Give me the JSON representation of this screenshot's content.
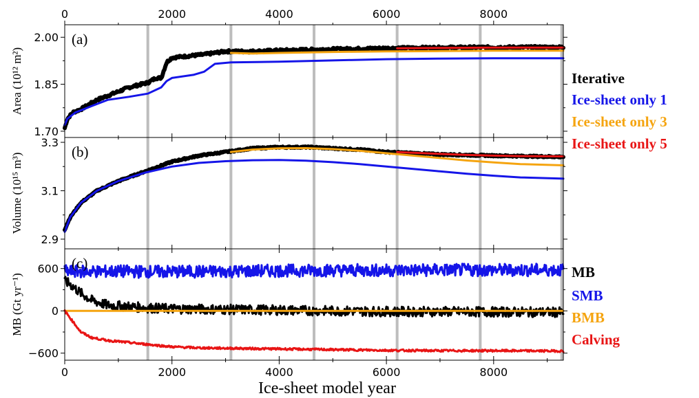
{
  "chart_data": [
    {
      "type": "line",
      "panel_label": "(a)",
      "ylabel": "Area (10¹² m²)",
      "xlim": [
        0,
        9300
      ],
      "ylim": [
        1.68,
        2.04
      ],
      "yticks": [
        1.7,
        1.85,
        2.0
      ],
      "ytick_labels": [
        "1.70",
        "1.85",
        "2.00"
      ],
      "xticks_top": [
        0,
        2000,
        4000,
        6000,
        8000
      ],
      "series": [
        {
          "name": "Iterative",
          "color": "#000000",
          "noisy": true,
          "x": [
            0,
            50,
            150,
            300,
            600,
            900,
            1200,
            1550,
            1700,
            1800,
            1900,
            2000,
            2300,
            2600,
            2800,
            3000,
            3100,
            3500,
            4000,
            5000,
            6000,
            7000,
            8000,
            9300
          ],
          "y": [
            1.71,
            1.74,
            1.76,
            1.77,
            1.8,
            1.82,
            1.84,
            1.855,
            1.87,
            1.87,
            1.92,
            1.935,
            1.94,
            1.945,
            1.95,
            1.955,
            1.955,
            1.955,
            1.958,
            1.962,
            1.965,
            1.967,
            1.968,
            1.968
          ]
        },
        {
          "name": "Ice-sheet only 1",
          "color": "#1515e8",
          "x": [
            0,
            50,
            200,
            500,
            800,
            1200,
            1550,
            1800,
            1900,
            2000,
            2400,
            2600,
            2800,
            3100,
            4000,
            5000,
            6000,
            7000,
            8000,
            9300
          ],
          "y": [
            1.72,
            1.74,
            1.76,
            1.78,
            1.8,
            1.81,
            1.82,
            1.84,
            1.86,
            1.87,
            1.88,
            1.89,
            1.915,
            1.92,
            1.922,
            1.926,
            1.93,
            1.932,
            1.933,
            1.933
          ]
        },
        {
          "name": "Ice-sheet only 3",
          "color": "#f5a40f",
          "x": [
            3100,
            3500,
            4000,
            5000,
            6000,
            7000,
            8000,
            9300
          ],
          "y": [
            1.95,
            1.948,
            1.95,
            1.953,
            1.955,
            1.956,
            1.957,
            1.957
          ]
        },
        {
          "name": "Ice-sheet only 5",
          "color": "#e81515",
          "x": [
            6200,
            7000,
            8000,
            9300
          ],
          "y": [
            1.965,
            1.966,
            1.967,
            1.967
          ]
        }
      ]
    },
    {
      "type": "line",
      "panel_label": "(b)",
      "ylabel": "Volume (10¹⁵ m³)",
      "xlim": [
        0,
        9300
      ],
      "ylim": [
        2.86,
        3.32
      ],
      "yticks": [
        2.9,
        3.1,
        3.3
      ],
      "ytick_labels": [
        "2.9",
        "3.1",
        "3.3"
      ],
      "series": [
        {
          "name": "Iterative",
          "color": "#000000",
          "noisy": true,
          "x": [
            0,
            100,
            300,
            600,
            1000,
            1500,
            2000,
            2500,
            3000,
            3500,
            4000,
            4600,
            5000,
            5500,
            6000,
            6500,
            7000,
            8000,
            9300
          ],
          "y": [
            2.94,
            2.99,
            3.05,
            3.1,
            3.14,
            3.18,
            3.22,
            3.245,
            3.26,
            3.275,
            3.28,
            3.28,
            3.275,
            3.27,
            3.26,
            3.255,
            3.25,
            3.245,
            3.24
          ]
        },
        {
          "name": "Ice-sheet only 1",
          "color": "#1515e8",
          "x": [
            0,
            100,
            300,
            600,
            1000,
            1500,
            2000,
            2500,
            3000,
            3500,
            4000,
            4500,
            5000,
            5500,
            6000,
            6500,
            7000,
            7500,
            8000,
            8500,
            9300
          ],
          "y": [
            2.93,
            2.99,
            3.05,
            3.1,
            3.14,
            3.175,
            3.2,
            3.215,
            3.222,
            3.226,
            3.227,
            3.224,
            3.218,
            3.21,
            3.2,
            3.19,
            3.18,
            3.17,
            3.162,
            3.155,
            3.15
          ]
        },
        {
          "name": "Ice-sheet only 3",
          "color": "#f5a40f",
          "x": [
            3100,
            3500,
            4000,
            4500,
            5000,
            5500,
            6000,
            6500,
            7000,
            7500,
            8000,
            8500,
            9300
          ],
          "y": [
            3.26,
            3.27,
            3.275,
            3.276,
            3.272,
            3.265,
            3.255,
            3.245,
            3.235,
            3.225,
            3.217,
            3.21,
            3.205
          ]
        },
        {
          "name": "Ice-sheet only 5",
          "color": "#e81515",
          "x": [
            6200,
            6500,
            7000,
            7500,
            8000,
            8500,
            9300
          ],
          "y": [
            3.26,
            3.257,
            3.252,
            3.248,
            3.245,
            3.243,
            3.242
          ]
        }
      ]
    },
    {
      "type": "line",
      "panel_label": "(c)",
      "ylabel": "MB (Gt yr⁻¹)",
      "xlim": [
        0,
        9300
      ],
      "ylim": [
        -700,
        880
      ],
      "yticks": [
        -600,
        0,
        600
      ],
      "ytick_labels": [
        "−600",
        "0",
        "600"
      ],
      "xticks": [
        0,
        2000,
        4000,
        6000,
        8000
      ],
      "xlabel": "Ice-sheet model year",
      "series": [
        {
          "name": "MB",
          "color": "#000000",
          "x": [
            0,
            100,
            300,
            500,
            800,
            1200,
            1600,
            2000,
            3000,
            4000,
            5000,
            6000,
            7000,
            8000,
            9300
          ],
          "y": [
            420,
            380,
            250,
            150,
            80,
            60,
            40,
            30,
            20,
            10,
            0,
            -10,
            -10,
            -15,
            -20
          ],
          "amp": 70
        },
        {
          "name": "SMB",
          "color": "#1515e8",
          "x": [
            0,
            1000,
            2000,
            3000,
            4000,
            5000,
            6000,
            7000,
            8000,
            9300
          ],
          "y": [
            560,
            560,
            555,
            560,
            570,
            575,
            575,
            580,
            580,
            580
          ],
          "amp": 90
        },
        {
          "name": "BMB",
          "color": "#f5a40f",
          "x": [
            0,
            9300
          ],
          "y": [
            0,
            0
          ],
          "amp": 0
        },
        {
          "name": "Calving",
          "color": "#e81515",
          "x": [
            0,
            100,
            200,
            300,
            500,
            800,
            1200,
            1600,
            2000,
            2500,
            3000,
            4000,
            5000,
            6000,
            7000,
            8000,
            9300
          ],
          "y": [
            0,
            -100,
            -200,
            -300,
            -380,
            -420,
            -450,
            -480,
            -510,
            -525,
            -530,
            -540,
            -550,
            -560,
            -565,
            -565,
            -570
          ],
          "amp": 15
        }
      ]
    }
  ],
  "restart_years": [
    1550,
    3100,
    4650,
    6200,
    7750,
    9270
  ],
  "legend_top": [
    {
      "label": "Iterative",
      "color": "#000000"
    },
    {
      "label": "Ice-sheet only 1",
      "color": "#1515e8"
    },
    {
      "label": "Ice-sheet only 3",
      "color": "#f5a40f"
    },
    {
      "label": "Ice-sheet only 5",
      "color": "#e81515"
    }
  ],
  "legend_bottom": [
    {
      "label": "MB",
      "color": "#000000"
    },
    {
      "label": "SMB",
      "color": "#1515e8"
    },
    {
      "label": "BMB",
      "color": "#f5a40f"
    },
    {
      "label": "Calving",
      "color": "#e81515"
    }
  ]
}
